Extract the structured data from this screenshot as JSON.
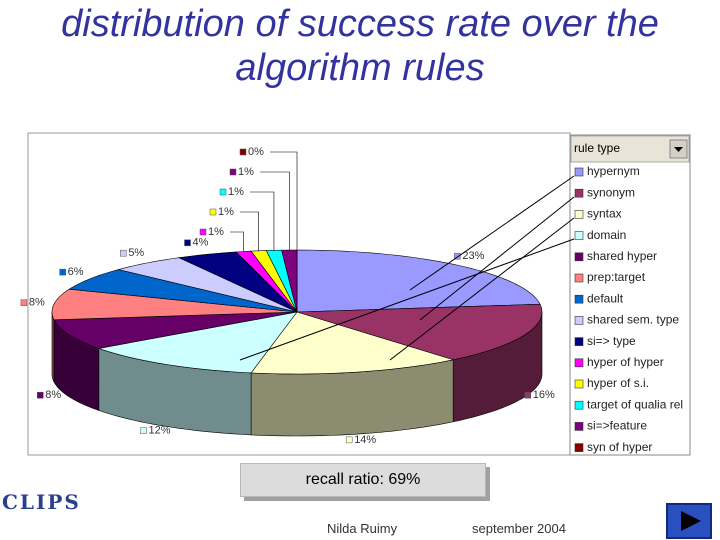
{
  "chart_data": {
    "type": "pie",
    "title": "distribution of success rate over the algorithm rules",
    "legend_title": "rule type",
    "categories": [
      "hypernym",
      "synonym",
      "syntax",
      "domain",
      "shared hyper",
      "prep:target",
      "default",
      "shared sem. type",
      "si=> type",
      "hyper of hyper",
      "hyper of s.i.",
      "target of qualia rel",
      "si=>feature",
      "syn of hyper"
    ],
    "values": [
      23,
      16,
      14,
      12,
      8,
      8,
      6,
      5,
      4,
      1,
      1,
      1,
      1,
      0
    ],
    "value_labels": [
      "23%",
      "16%",
      "14%",
      "12%",
      "8%",
      "8%",
      "6%",
      "5%",
      "4%",
      "1%",
      "1%",
      "1%",
      "1%",
      "0%"
    ],
    "colors": [
      "#9999ff",
      "#993366",
      "#ffffcc",
      "#ccffff",
      "#660066",
      "#ff8080",
      "#0066cc",
      "#ccccff",
      "#000080",
      "#ff00ff",
      "#ffff00",
      "#00ffff",
      "#800080",
      "#800000"
    ],
    "legend": "right",
    "annotation": "recall ratio: 69%"
  },
  "footer": {
    "author": "Nilda Ruimy",
    "date": "september 2004",
    "logo": "CLIPS"
  }
}
